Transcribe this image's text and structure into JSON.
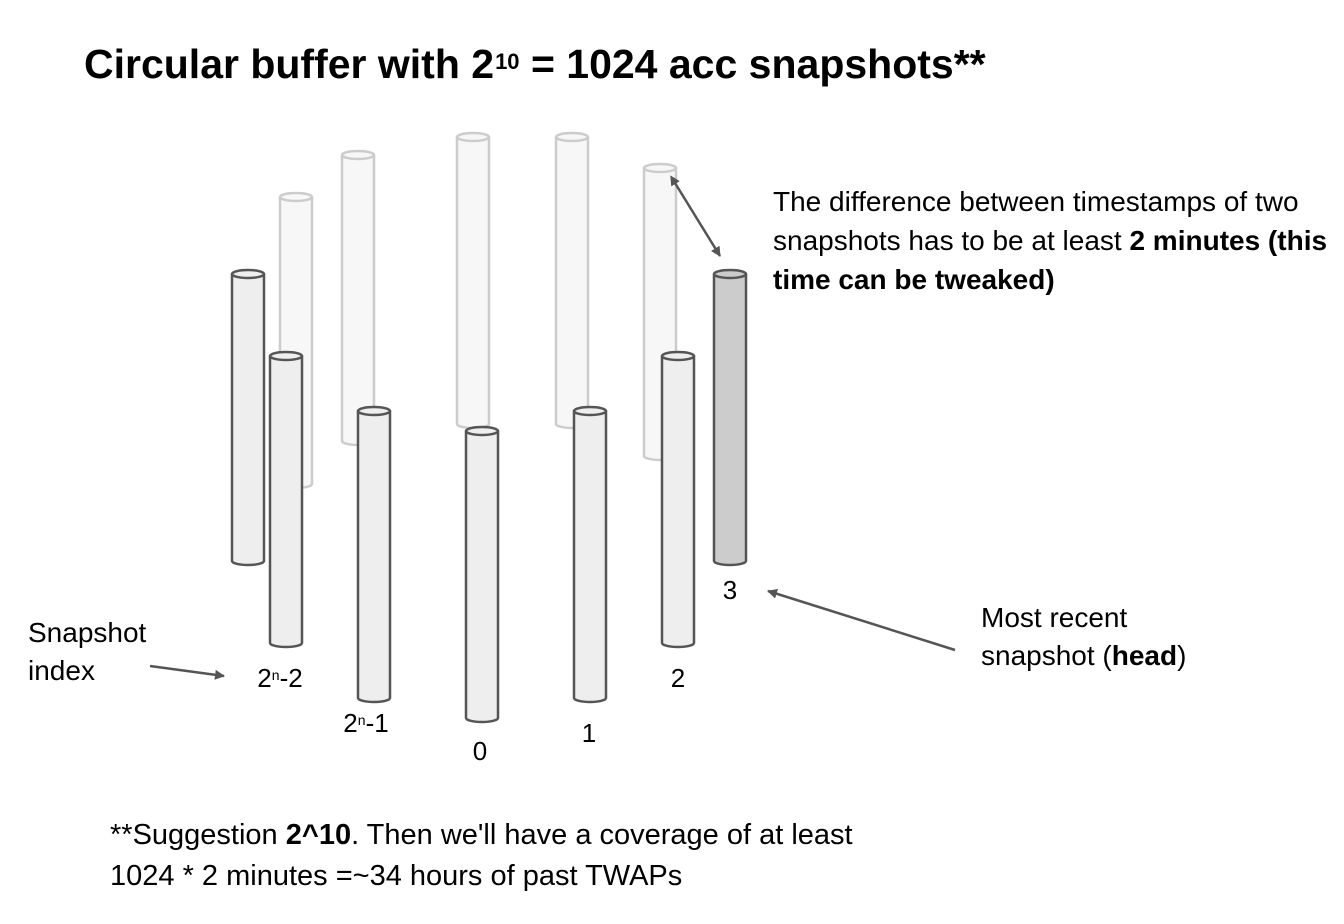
{
  "title": {
    "prefix": "Circular buffer with 2",
    "superscript": "10",
    "suffix": " = 1024 acc snapshots**"
  },
  "note": {
    "text": "The difference between timestamps of two snapshots has to be at least ",
    "bold": "2 minutes (this time can be tweaked)"
  },
  "snapshot_index_label": {
    "line1": "Snapshot",
    "line2": "index"
  },
  "head_label": {
    "line1": "Most recent",
    "line2_prefix": "snapshot (",
    "line2_bold": "head",
    "line2_suffix": ")"
  },
  "indices": {
    "n_minus_2": {
      "base": "2",
      "sup": "n",
      "rest": "-2"
    },
    "n_minus_1": {
      "base": "2",
      "sup": "n",
      "rest": "-1"
    },
    "zero": "0",
    "one": "1",
    "two": "2",
    "three": "3"
  },
  "footnote": {
    "line1_prefix": "**Suggestion ",
    "line1_bold": "2^10",
    "line1_suffix": ". Then we'll have a coverage of at least",
    "line2": "1024 * 2 minutes =~34  hours of past TWAPs"
  },
  "colors": {
    "front_fill": "#eeeeee",
    "front_stroke": "#555555",
    "back_fill": "#f7f7f7",
    "back_stroke": "#cccccc",
    "head_fill": "#cccccc",
    "arrow": "#555555"
  }
}
